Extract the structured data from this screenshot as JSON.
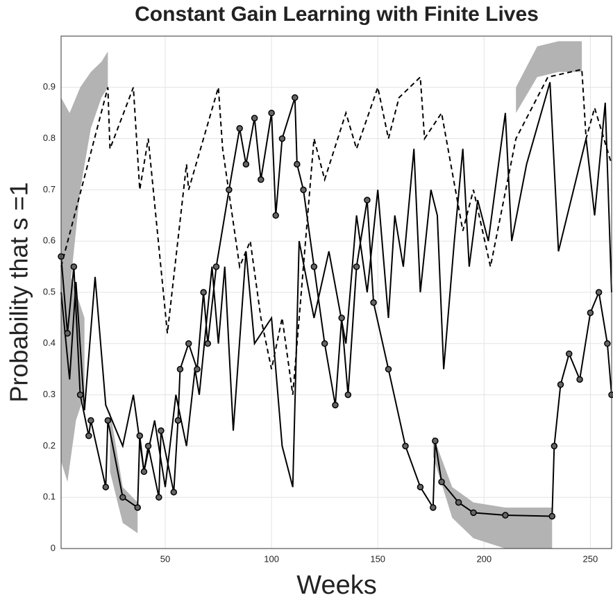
{
  "chart_data": {
    "type": "line",
    "title": "Constant Gain Learning with Finite Lives",
    "xlabel": "Weeks",
    "ylabel": "Probability that s =1",
    "xlim": [
      1,
      260
    ],
    "ylim": [
      0,
      1
    ],
    "xticks": [
      50,
      100,
      150,
      200,
      250
    ],
    "yticks": [
      0,
      0.1,
      0.2,
      0.3,
      0.4,
      0.5,
      0.6,
      0.7,
      0.8,
      0.9
    ],
    "grid": true,
    "band_color": "#b3b3b3",
    "bands": [
      {
        "x": [
          1,
          5,
          10,
          15,
          20,
          23
        ],
        "lower": [
          0.3,
          0.5,
          0.7,
          0.82,
          0.88,
          0.9
        ],
        "upper": [
          0.88,
          0.85,
          0.9,
          0.93,
          0.95,
          0.97
        ]
      },
      {
        "x": [
          1,
          4,
          8,
          12
        ],
        "lower": [
          0.17,
          0.13,
          0.25,
          0.3
        ],
        "upper": [
          0.6,
          0.55,
          0.5,
          0.45
        ]
      },
      {
        "x": [
          24,
          30,
          37
        ],
        "lower": [
          0.15,
          0.05,
          0.03
        ],
        "upper": [
          0.27,
          0.12,
          0.09
        ]
      },
      {
        "x": [
          176,
          185,
          195,
          210,
          232
        ],
        "lower": [
          0.18,
          0.06,
          0.02,
          0,
          0
        ],
        "upper": [
          0.22,
          0.12,
          0.09,
          0.08,
          0.08
        ]
      },
      {
        "x": [
          215,
          225,
          235,
          246
        ],
        "lower": [
          0.85,
          0.92,
          0.93,
          0.93
        ],
        "upper": [
          0.9,
          0.98,
          0.99,
          0.99
        ]
      }
    ],
    "series": [
      {
        "color": "#000000",
        "dashed": true,
        "markers": false,
        "x": [
          1,
          23,
          24,
          35,
          38,
          42,
          51,
          60,
          61,
          75,
          77,
          85,
          90,
          95,
          100,
          105,
          110,
          115,
          120,
          125,
          135,
          140,
          150,
          155,
          160,
          170,
          172,
          180,
          190,
          195,
          203,
          215,
          230,
          246,
          248,
          252,
          260
        ],
        "values": [
          0.55,
          0.9,
          0.78,
          0.9,
          0.7,
          0.8,
          0.42,
          0.75,
          0.7,
          0.9,
          0.78,
          0.55,
          0.6,
          0.45,
          0.35,
          0.45,
          0.3,
          0.55,
          0.8,
          0.72,
          0.85,
          0.78,
          0.9,
          0.8,
          0.88,
          0.92,
          0.8,
          0.85,
          0.62,
          0.7,
          0.55,
          0.8,
          0.92,
          0.935,
          0.8,
          0.86,
          0.75
        ]
      },
      {
        "color": "#000000",
        "dashed": false,
        "markers": false,
        "x": [
          1,
          5,
          8,
          12,
          17,
          22,
          30,
          35,
          40,
          45,
          50,
          55,
          60,
          64,
          66,
          72,
          75,
          78,
          82,
          88,
          92,
          100,
          105,
          110,
          113,
          120,
          127,
          135,
          140,
          145,
          150,
          155,
          158,
          162,
          167,
          170,
          175,
          178,
          181,
          186,
          190,
          193,
          197,
          202,
          210,
          213,
          220,
          231,
          235,
          248,
          252,
          257,
          260
        ],
        "values": [
          0.5,
          0.33,
          0.52,
          0.27,
          0.53,
          0.28,
          0.2,
          0.3,
          0.15,
          0.25,
          0.12,
          0.3,
          0.2,
          0.35,
          0.3,
          0.55,
          0.4,
          0.55,
          0.23,
          0.58,
          0.4,
          0.45,
          0.2,
          0.12,
          0.6,
          0.45,
          0.58,
          0.4,
          0.65,
          0.5,
          0.7,
          0.45,
          0.65,
          0.55,
          0.78,
          0.5,
          0.7,
          0.65,
          0.35,
          0.6,
          0.78,
          0.55,
          0.68,
          0.6,
          0.85,
          0.6,
          0.75,
          0.91,
          0.58,
          0.8,
          0.65,
          0.87,
          0.5
        ]
      },
      {
        "color": "#000000",
        "dashed": false,
        "markers": true,
        "x": [
          1,
          4,
          7,
          10,
          14,
          15,
          22,
          23,
          30,
          37,
          38,
          40,
          42,
          47,
          48,
          54,
          56,
          57,
          61,
          65,
          68,
          70,
          74,
          80,
          85,
          88,
          92,
          95,
          100,
          102,
          105,
          111,
          112,
          115,
          120,
          125,
          130,
          133,
          136,
          140,
          145,
          148,
          155,
          163,
          170,
          176,
          177,
          180,
          188,
          195,
          210,
          232,
          233,
          236,
          240,
          245,
          250,
          254,
          258,
          260
        ],
        "values": [
          0.57,
          0.42,
          0.55,
          0.3,
          0.22,
          0.25,
          0.12,
          0.25,
          0.1,
          0.08,
          0.22,
          0.15,
          0.2,
          0.1,
          0.23,
          0.11,
          0.25,
          0.35,
          0.4,
          0.35,
          0.5,
          0.4,
          0.55,
          0.7,
          0.82,
          0.75,
          0.84,
          0.72,
          0.85,
          0.65,
          0.8,
          0.88,
          0.75,
          0.7,
          0.55,
          0.4,
          0.28,
          0.45,
          0.3,
          0.55,
          0.68,
          0.48,
          0.35,
          0.2,
          0.12,
          0.08,
          0.21,
          0.13,
          0.09,
          0.07,
          0.065,
          0.063,
          0.2,
          0.32,
          0.38,
          0.33,
          0.46,
          0.5,
          0.4,
          0.3
        ]
      }
    ]
  }
}
